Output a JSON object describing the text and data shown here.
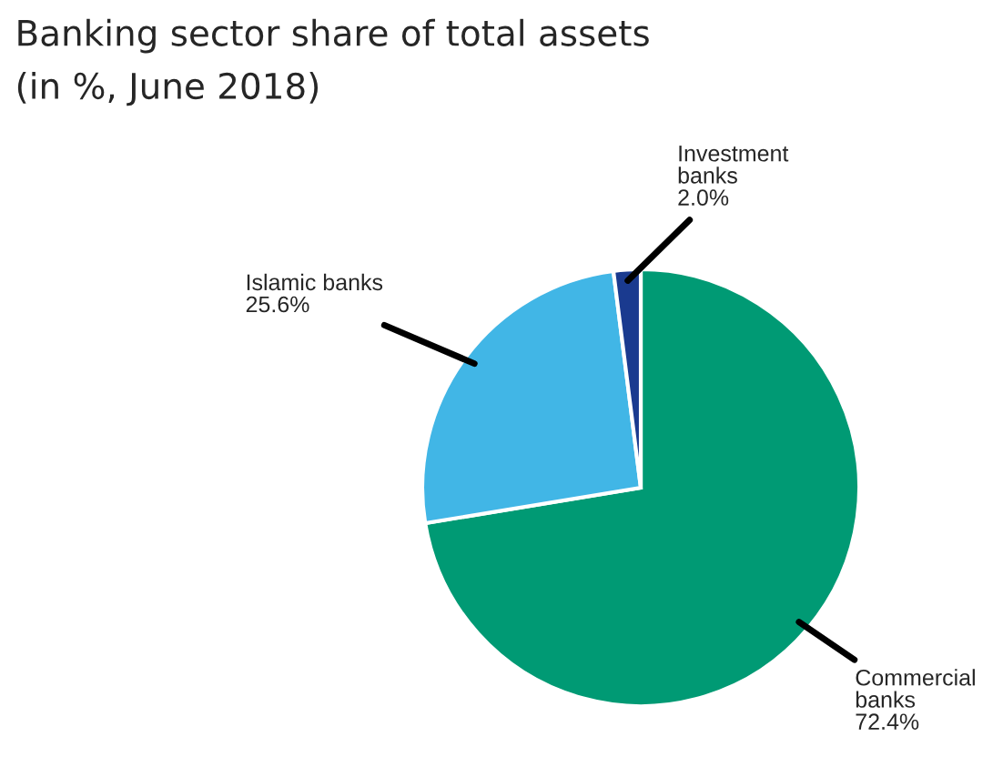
{
  "chart_data": {
    "type": "pie",
    "title": "Banking sector share of total assets",
    "subtitle": "(in %, June 2018)",
    "categories": [
      "Commercial\nbanks",
      "Islamic banks",
      "Investment\nbanks"
    ],
    "values": [
      72.4,
      25.6,
      2.0
    ],
    "colors": [
      "#009a74",
      "#41b6e6",
      "#1a3a8f"
    ],
    "value_labels": [
      "72.4%",
      "25.6%",
      "2.0%"
    ],
    "legend": false
  }
}
